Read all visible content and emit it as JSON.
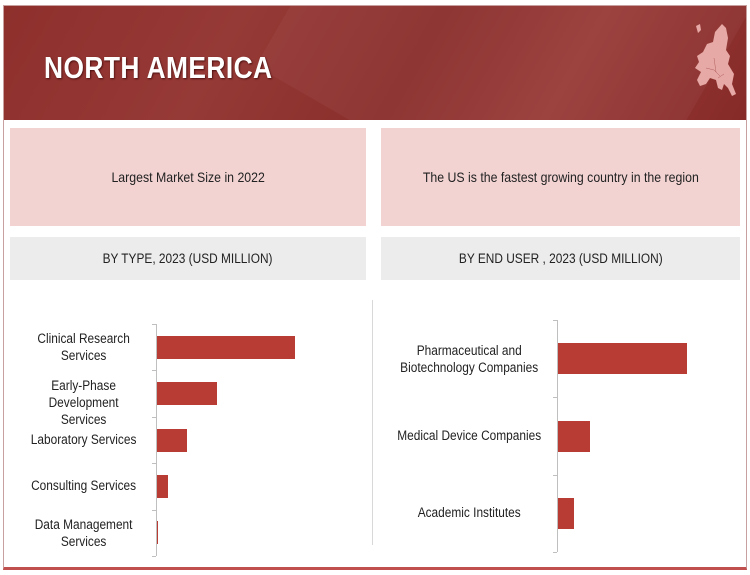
{
  "header": {
    "title": "NORTH AMERICA",
    "map_icon": "europe-map-icon"
  },
  "highlights": [
    "Largest Market Size in 2022",
    "The US is the fastest growing country in the region"
  ],
  "colors": {
    "header": "#8e2f2c",
    "bar": "#b83b34",
    "highlight_bg": "#f2d3d2",
    "section_bg": "#ececec"
  },
  "chart_data": [
    {
      "type": "bar",
      "orientation": "horizontal",
      "title": "BY TYPE, 2023 (USD MILLION)",
      "categories": [
        "Clinical Research Services",
        "Early-Phase Development Services",
        "Laboratory Services",
        "Consulting Services",
        "Data Management Services"
      ],
      "values": [
        138,
        60,
        30,
        11,
        1
      ],
      "grid": false
    },
    {
      "type": "bar",
      "orientation": "horizontal",
      "title": "BY END USER , 2023 (USD MILLION)",
      "categories": [
        "Pharmaceutical and Biotechnology Companies",
        "Medical Device Companies",
        "Academic Institutes"
      ],
      "values": [
        129,
        32,
        16
      ],
      "grid": false
    }
  ]
}
